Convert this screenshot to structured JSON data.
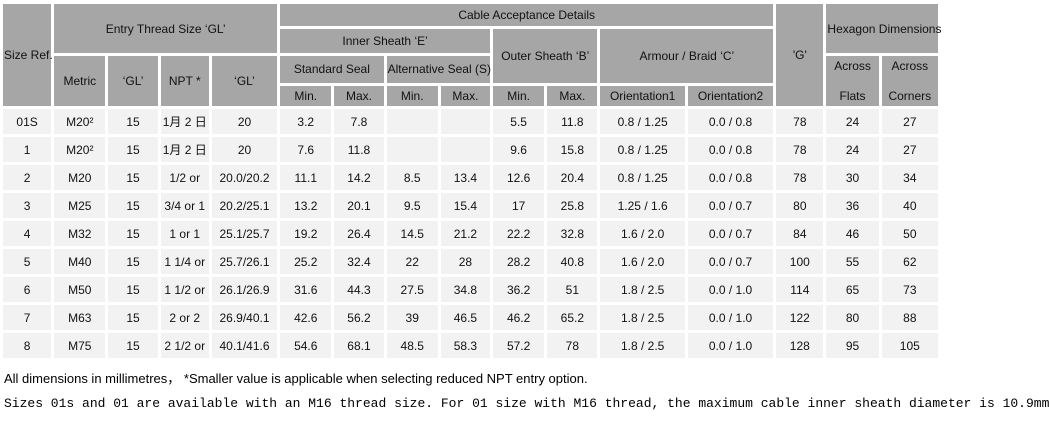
{
  "colors": {
    "header_bg": "#a6a6a6",
    "cell_bg": "#f2f2f2",
    "page_bg": "#ffffff",
    "text": "#111111"
  },
  "table": {
    "header": {
      "size_ref": "Size Ref.",
      "entry_thread": "Entry Thread Size ‘GL’",
      "metric": "Metric",
      "gl1": "‘GL’",
      "npt": "NPT *",
      "gl2": "‘GL’",
      "cable_acceptance": "Cable Acceptance Details",
      "inner_sheath": "Inner Sheath ‘E’",
      "standard_seal": "Standard Seal",
      "alternative_seal": "Alternative Seal (S)",
      "outer_sheath": "Outer Sheath ‘B’",
      "armour_braid": "Armour / Braid ‘C’",
      "min1": "Min.",
      "max1": "Max.",
      "min2": "Min.",
      "max2": "Max.",
      "min3": "Min.",
      "max3": "Max.",
      "orientation1": "Orientation1",
      "orientation2": "Orientation2",
      "g": "'G'",
      "hexagon": "Hexagon Dimensions",
      "across_flats": {
        "line1": "Across",
        "line2": "Flats"
      },
      "across_corners": {
        "line1": "Across",
        "line2": "Corners"
      }
    },
    "rows": [
      [
        "01S",
        "M20²",
        "15",
        "1月 2 日",
        "20",
        "3.2",
        "7.8",
        "",
        "",
        "5.5",
        "11.8",
        "0.8 / 1.25",
        "0.0 / 0.8",
        "78",
        "24",
        "27"
      ],
      [
        "1",
        "M20²",
        "15",
        "1月 2 日",
        "20",
        "7.6",
        "11.8",
        "",
        "",
        "9.6",
        "15.8",
        "0.8 / 1.25",
        "0.0 / 0.8",
        "78",
        "24",
        "27"
      ],
      [
        "2",
        "M20",
        "15",
        "1/2 or",
        "20.0/20.2",
        "11.1",
        "14.2",
        "8.5",
        "13.4",
        "12.6",
        "20.4",
        "0.8 / 1.25",
        "0.0 / 0.8",
        "78",
        "30",
        "34"
      ],
      [
        "3",
        "M25",
        "15",
        "3/4 or 1",
        "20.2/25.1",
        "13.2",
        "20.1",
        "9.5",
        "15.4",
        "17",
        "25.8",
        "1.25 / 1.6",
        "0.0 / 0.7",
        "80",
        "36",
        "40"
      ],
      [
        "4",
        "M32",
        "15",
        "1 or 1",
        "25.1/25.7",
        "19.2",
        "26.4",
        "14.5",
        "21.2",
        "22.2",
        "32.8",
        "1.6 / 2.0",
        "0.0 / 0.7",
        "84",
        "46",
        "50"
      ],
      [
        "5",
        "M40",
        "15",
        "1 1/4 or",
        "25.7/26.1",
        "25.2",
        "32.4",
        "22",
        "28",
        "28.2",
        "40.8",
        "1.6 / 2.0",
        "0.0 / 0.7",
        "100",
        "55",
        "62"
      ],
      [
        "6",
        "M50",
        "15",
        "1 1/2 or",
        "26.1/26.9",
        "31.6",
        "44.3",
        "27.5",
        "34.8",
        "36.2",
        "51",
        "1.8 / 2.5",
        "0.0 / 1.0",
        "114",
        "65",
        "73"
      ],
      [
        "7",
        "M63",
        "15",
        "2 or 2",
        "26.9/40.1",
        "42.6",
        "56.2",
        "39",
        "46.5",
        "46.2",
        "65.2",
        "1.8 / 2.5",
        "0.0 / 1.0",
        "122",
        "80",
        "88"
      ],
      [
        "8",
        "M75",
        "15",
        "2 1/2 or",
        "40.1/41.6",
        "54.6",
        "68.1",
        "48.5",
        "58.3",
        "57.2",
        "78",
        "1.8 / 2.5",
        "0.0 / 1.0",
        "128",
        "95",
        "105"
      ]
    ]
  },
  "footnotes": {
    "line1": "All dimensions in millimetres，  *Smaller value is applicable when selecting reduced NPT entry option.",
    "line2": "Sizes 01s and 01  are available with an M16 thread size. For 01 size with M16 thread, the maximum cable inner sheath diameter is 10.9mm"
  }
}
